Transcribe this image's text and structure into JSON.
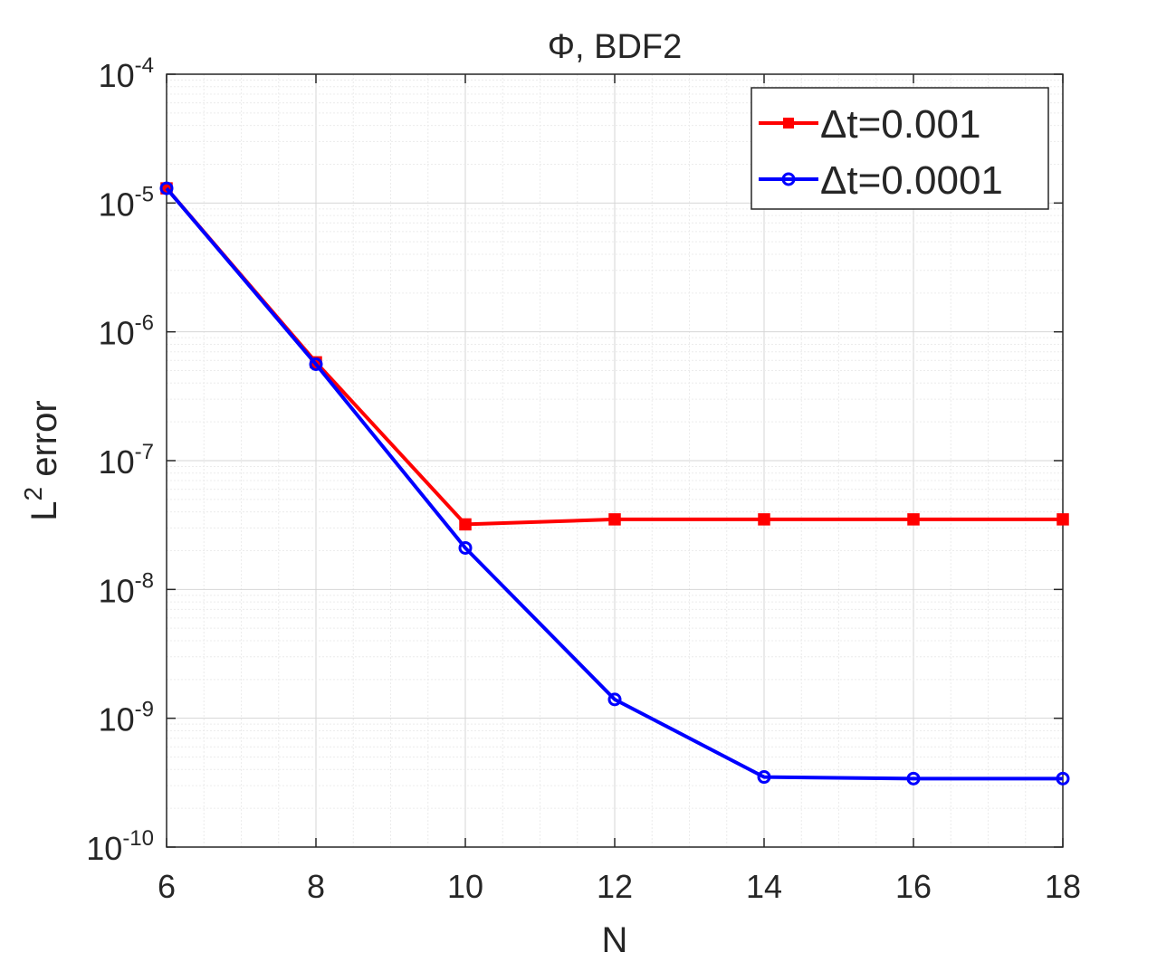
{
  "chart_data": {
    "type": "line",
    "title": "Φ, BDF2",
    "xlabel": "N",
    "ylabel_base": "L",
    "ylabel_sup": "2",
    "ylabel_rest": " error",
    "x_ticks": [
      "6",
      "8",
      "10",
      "12",
      "14",
      "16",
      "18"
    ],
    "y_scale": "log",
    "ylim": [
      1e-10,
      0.0001
    ],
    "xlim": [
      6,
      18
    ],
    "grid": true,
    "y_tick_base": "10",
    "y_ticks": [
      {
        "value": 1e-10,
        "exp": "-10"
      },
      {
        "value": 1e-09,
        "exp": "-9"
      },
      {
        "value": 1e-08,
        "exp": "-8"
      },
      {
        "value": 1e-07,
        "exp": "-7"
      },
      {
        "value": 1e-06,
        "exp": "-6"
      },
      {
        "value": 1e-05,
        "exp": "-5"
      },
      {
        "value": 0.0001,
        "exp": "-4"
      }
    ],
    "x": [
      6,
      8,
      10,
      12,
      14,
      16,
      18
    ],
    "legend_position": "top-right",
    "series": [
      {
        "name": "Δt=0.001",
        "color": "#ff0000",
        "marker": "square",
        "values": [
          1.3e-05,
          5.8e-07,
          3.2e-08,
          3.5e-08,
          3.5e-08,
          3.5e-08,
          3.5e-08
        ]
      },
      {
        "name": "Δt=0.0001",
        "color": "#0000ff",
        "marker": "circle",
        "values": [
          1.3e-05,
          5.6e-07,
          2.1e-08,
          1.4e-09,
          3.5e-10,
          3.4e-10,
          3.4e-10
        ]
      }
    ]
  }
}
